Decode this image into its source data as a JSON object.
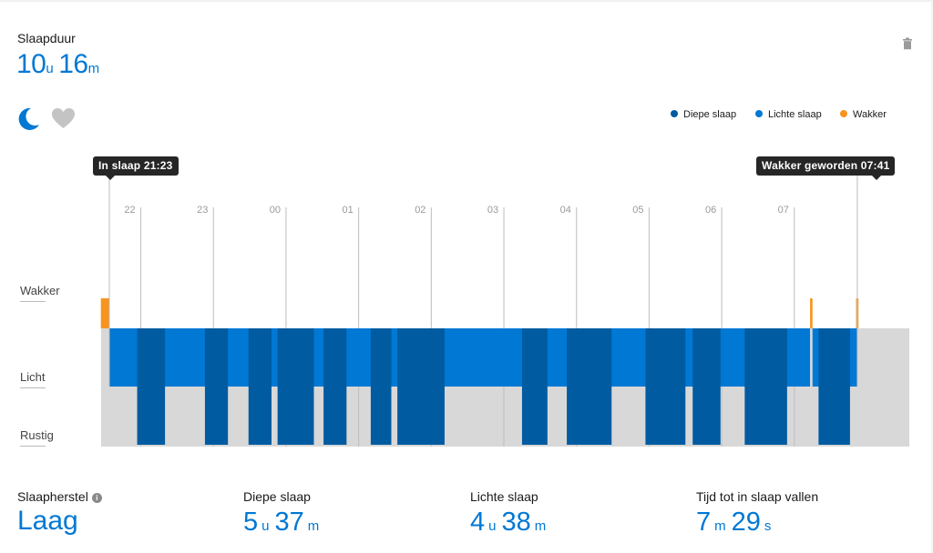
{
  "summary": {
    "duration_label": "Slaapduur",
    "duration_hours": "10",
    "hours_unit": "u",
    "duration_minutes": "16",
    "minutes_unit": "m"
  },
  "icons": {
    "trash": "trash-icon",
    "moon": "moon-icon",
    "heart": "heart-icon",
    "info": "info-icon"
  },
  "colors": {
    "deep": "#005ba1",
    "light": "#0078d4",
    "awake": "#f7941d",
    "background_band": "#d8d8d8",
    "accent_text": "#0078d4"
  },
  "tooltips": {
    "start": "In slaap 21:23",
    "end": "Wakker geworden 07:41"
  },
  "row_labels": {
    "awake": "Wakker",
    "light": "Licht",
    "deep": "Rustig"
  },
  "chart_data": {
    "type": "timeline",
    "x_unit": "clock time",
    "x_range": [
      "21:23",
      "07:41"
    ],
    "axis_start": "21:23",
    "axis_end": "08:24",
    "tick_labels": [
      "22",
      "23",
      "00",
      "01",
      "02",
      "03",
      "04",
      "05",
      "06",
      "07"
    ],
    "tick_times": [
      "21:49",
      "22:49",
      "23:49",
      "00:49",
      "01:49",
      "02:49",
      "03:49",
      "04:49",
      "05:49",
      "06:49"
    ],
    "legend_position": "top-right",
    "legend": [
      {
        "key": "deep",
        "label": "Diepe slaap"
      },
      {
        "key": "light",
        "label": "Lichte slaap"
      },
      {
        "key": "awake",
        "label": "Wakker"
      }
    ],
    "levels": [
      "Wakker",
      "Licht",
      "Rustig"
    ],
    "awake_segments": [
      {
        "start": "21:16",
        "end": "21:23"
      },
      {
        "start": "07:02",
        "end": "07:04"
      },
      {
        "start": "07:40",
        "end": "07:42"
      }
    ],
    "light_segments": [
      {
        "start": "21:23",
        "end": "07:02"
      },
      {
        "start": "07:04",
        "end": "07:41"
      }
    ],
    "deep_segments": [
      {
        "start": "21:46",
        "end": "22:09"
      },
      {
        "start": "22:42",
        "end": "23:01"
      },
      {
        "start": "23:18",
        "end": "23:37"
      },
      {
        "start": "23:42",
        "end": "00:12"
      },
      {
        "start": "00:20",
        "end": "00:39"
      },
      {
        "start": "00:59",
        "end": "01:16"
      },
      {
        "start": "01:21",
        "end": "02:00"
      },
      {
        "start": "03:04",
        "end": "03:25"
      },
      {
        "start": "03:41",
        "end": "04:18"
      },
      {
        "start": "04:46",
        "end": "05:19"
      },
      {
        "start": "05:25",
        "end": "05:48"
      },
      {
        "start": "06:08",
        "end": "06:43"
      },
      {
        "start": "07:09",
        "end": "07:35"
      }
    ]
  },
  "stats": {
    "recovery_label": "Slaapherstel",
    "recovery_value": "Laag",
    "deep_label": "Diepe slaap",
    "deep_hours": "5",
    "deep_hours_unit": "u",
    "deep_minutes": "37",
    "deep_minutes_unit": "m",
    "light_label": "Lichte slaap",
    "light_hours": "4",
    "light_hours_unit": "u",
    "light_minutes": "38",
    "light_minutes_unit": "m",
    "fall_label": "Tijd tot in slaap vallen",
    "fall_minutes": "7",
    "fall_minutes_unit": "m",
    "fall_seconds": "29",
    "fall_seconds_unit": "s"
  }
}
